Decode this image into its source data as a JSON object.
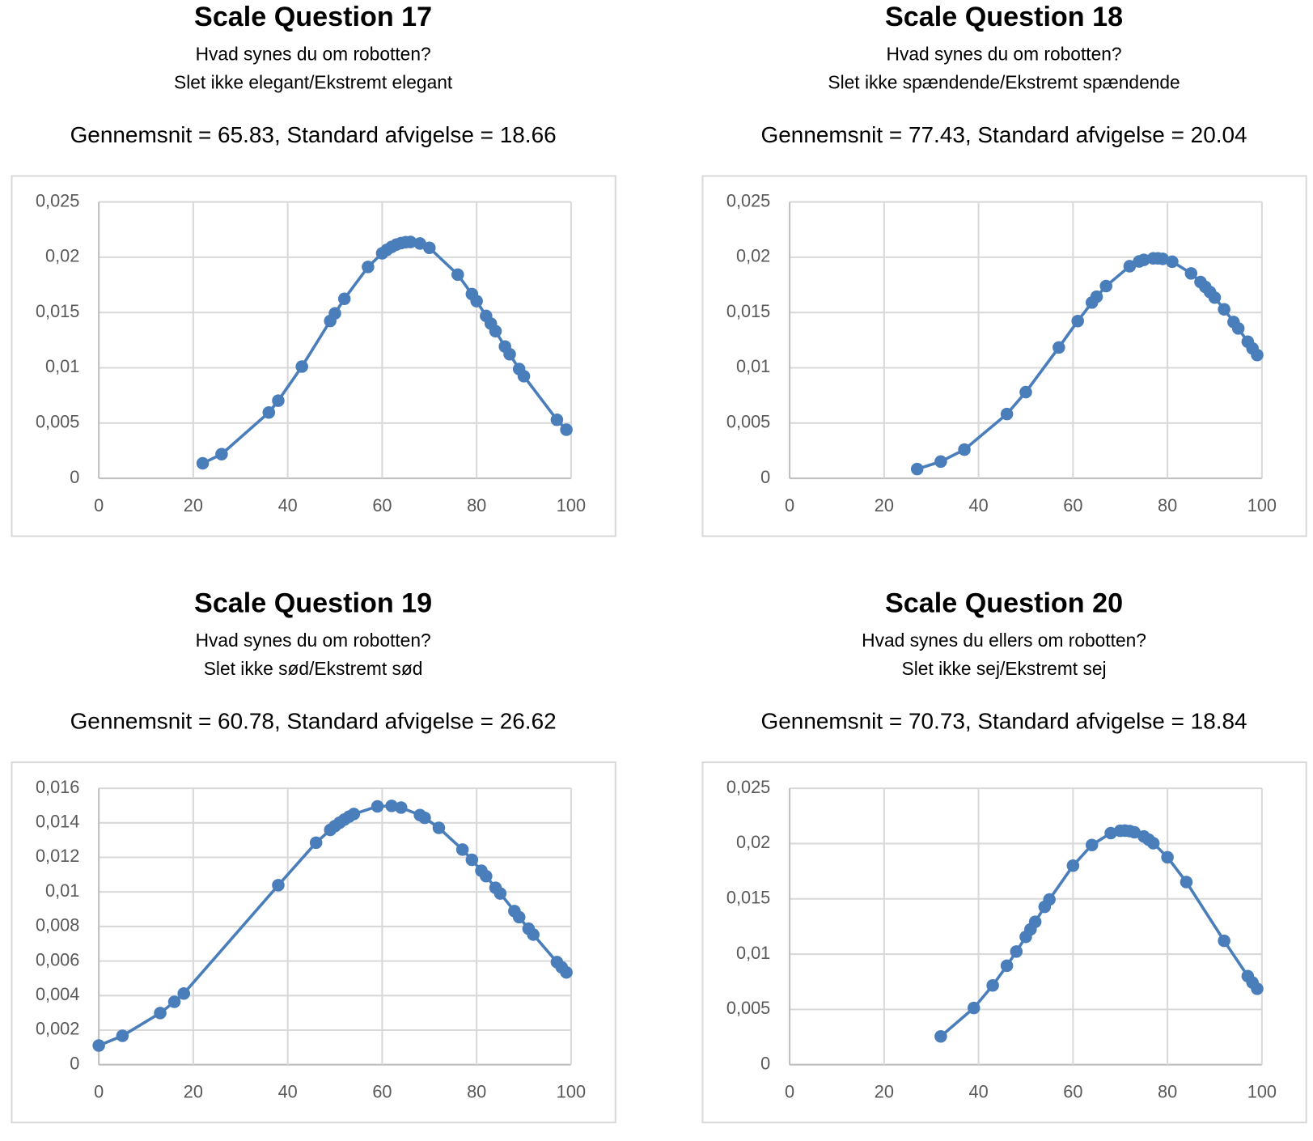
{
  "chart_data": [
    {
      "type": "line",
      "title": "Scale Question 17",
      "subtitle": [
        "Hvad synes du om robotten?",
        "Slet ikke elegant/Ekstremt elegant"
      ],
      "stats": "Gennemsnit =  65.83, Standard afvigelse = 18.66",
      "color": "#4a7ebb",
      "grid": true,
      "x": [
        22,
        26,
        36,
        38,
        43,
        49,
        50,
        52,
        57,
        60,
        61,
        62,
        63,
        64,
        65,
        66,
        68,
        70,
        76,
        79,
        80,
        82,
        83,
        84,
        86,
        87,
        89,
        90,
        97,
        99
      ],
      "values": [
        0.00136,
        0.00219,
        0.00596,
        0.00703,
        0.01011,
        0.01424,
        0.01492,
        0.01624,
        0.01912,
        0.02036,
        0.02067,
        0.02093,
        0.02114,
        0.02128,
        0.02136,
        0.02138,
        0.02124,
        0.02085,
        0.01843,
        0.01667,
        0.01603,
        0.01469,
        0.014,
        0.01331,
        0.01192,
        0.01123,
        0.00989,
        0.00924,
        0.0053,
        0.0044
      ],
      "xlim": [
        0,
        100
      ],
      "ylim": [
        0,
        0.025
      ],
      "xticks": [
        0,
        20,
        40,
        60,
        80,
        100
      ],
      "yticks": [
        0,
        {
          "value": 0.005,
          "label": "0,005"
        },
        {
          "value": 0.01,
          "label": "0,01"
        },
        {
          "value": 0.015,
          "label": "0,015"
        },
        {
          "value": 0.02,
          "label": "0,02"
        },
        {
          "value": 0.025,
          "label": "0,025"
        }
      ]
    },
    {
      "type": "line",
      "title": "Scale Question 18",
      "subtitle": [
        "Hvad synes du om robotten?",
        "Slet ikke spændende/Ekstremt spændende"
      ],
      "stats": "Gennemsnit =  77.43, Standard afvigelse = 20.04",
      "color": "#4a7ebb",
      "grid": true,
      "x": [
        27,
        32,
        37,
        46,
        50,
        57,
        61,
        64,
        65,
        67,
        72,
        74,
        75,
        77,
        78,
        79,
        81,
        85,
        87,
        88,
        89,
        90,
        92,
        94,
        95,
        97,
        98,
        99
      ],
      "values": [
        0.00084,
        0.00152,
        0.0026,
        0.00582,
        0.0078,
        0.01184,
        0.01423,
        0.0159,
        0.01643,
        0.01739,
        0.01919,
        0.01962,
        0.01976,
        0.0199,
        0.0199,
        0.01985,
        0.0196,
        0.01854,
        0.01776,
        0.01732,
        0.01685,
        0.01635,
        0.01529,
        0.01414,
        0.01356,
        0.01236,
        0.01176,
        0.01115
      ],
      "xlim": [
        0,
        100
      ],
      "ylim": [
        0,
        0.025
      ],
      "xticks": [
        0,
        20,
        40,
        60,
        80,
        100
      ],
      "yticks": [
        0,
        {
          "value": 0.005,
          "label": "0,005"
        },
        {
          "value": 0.01,
          "label": "0,01"
        },
        {
          "value": 0.015,
          "label": "0,015"
        },
        {
          "value": 0.02,
          "label": "0,02"
        },
        {
          "value": 0.025,
          "label": "0,025"
        }
      ]
    },
    {
      "type": "line",
      "title": "Scale Question 19",
      "subtitle": [
        "Hvad synes du om robotten?",
        "Slet ikke sød/Ekstremt sød"
      ],
      "stats": "Gennemsnit =  60.78, Standard afvigelse = 26.62",
      "color": "#4a7ebb",
      "grid": true,
      "x": [
        0,
        5,
        13,
        16,
        18,
        38,
        46,
        49,
        50,
        51,
        52,
        53,
        54,
        59,
        62,
        64,
        68,
        69,
        72,
        77,
        79,
        81,
        82,
        84,
        85,
        88,
        89,
        91,
        92,
        97,
        98,
        99
      ],
      "values": [
        0.00111,
        0.00167,
        0.00299,
        0.00364,
        0.00412,
        0.01039,
        0.01285,
        0.01359,
        0.01381,
        0.01401,
        0.01419,
        0.01436,
        0.01451,
        0.01495,
        0.01498,
        0.01488,
        0.01445,
        0.01429,
        0.01371,
        0.01245,
        0.01186,
        0.01123,
        0.01091,
        0.01024,
        0.00991,
        0.00889,
        0.00854,
        0.00787,
        0.00753,
        0.00594,
        0.00564,
        0.00534
      ],
      "xlim": [
        0,
        100
      ],
      "ylim": [
        0,
        0.016
      ],
      "xticks": [
        0,
        20,
        40,
        60,
        80,
        100
      ],
      "yticks": [
        0,
        {
          "value": 0.002,
          "label": "0,002"
        },
        {
          "value": 0.004,
          "label": "0,004"
        },
        {
          "value": 0.006,
          "label": "0,006"
        },
        {
          "value": 0.008,
          "label": "0,008"
        },
        {
          "value": 0.01,
          "label": "0,01"
        },
        {
          "value": 0.012,
          "label": "0,012"
        },
        {
          "value": 0.014,
          "label": "0,014"
        },
        {
          "value": 0.016,
          "label": "0,016"
        }
      ]
    },
    {
      "type": "line",
      "title": "Scale Question 20",
      "subtitle": [
        "Hvad synes du ellers om robotten?",
        "Slet ikke sej/Ekstremt sej"
      ],
      "stats": "Gennemsnit =  70.73, Standard afvigelse = 18.84",
      "color": "#4a7ebb",
      "grid": true,
      "x": [
        32,
        39,
        43,
        46,
        48,
        50,
        51,
        52,
        54,
        55,
        60,
        64,
        68,
        70,
        71,
        72,
        73,
        75,
        76,
        77,
        80,
        84,
        92,
        97,
        98,
        99
      ],
      "values": [
        0.00256,
        0.00513,
        0.00717,
        0.00895,
        0.01023,
        0.01156,
        0.01224,
        0.01292,
        0.01428,
        0.01494,
        0.018,
        0.01987,
        0.02095,
        0.02116,
        0.02117,
        0.02113,
        0.02102,
        0.02064,
        0.02036,
        0.02003,
        0.01876,
        0.01652,
        0.0112,
        0.00801,
        0.00743,
        0.00687
      ],
      "xlim": [
        0,
        100
      ],
      "ylim": [
        0,
        0.025
      ],
      "xticks": [
        0,
        20,
        40,
        60,
        80,
        100
      ],
      "yticks": [
        0,
        {
          "value": 0.005,
          "label": "0,005"
        },
        {
          "value": 0.01,
          "label": "0,01"
        },
        {
          "value": 0.015,
          "label": "0,015"
        },
        {
          "value": 0.02,
          "label": "0,02"
        },
        {
          "value": 0.025,
          "label": "0,025"
        }
      ]
    }
  ]
}
